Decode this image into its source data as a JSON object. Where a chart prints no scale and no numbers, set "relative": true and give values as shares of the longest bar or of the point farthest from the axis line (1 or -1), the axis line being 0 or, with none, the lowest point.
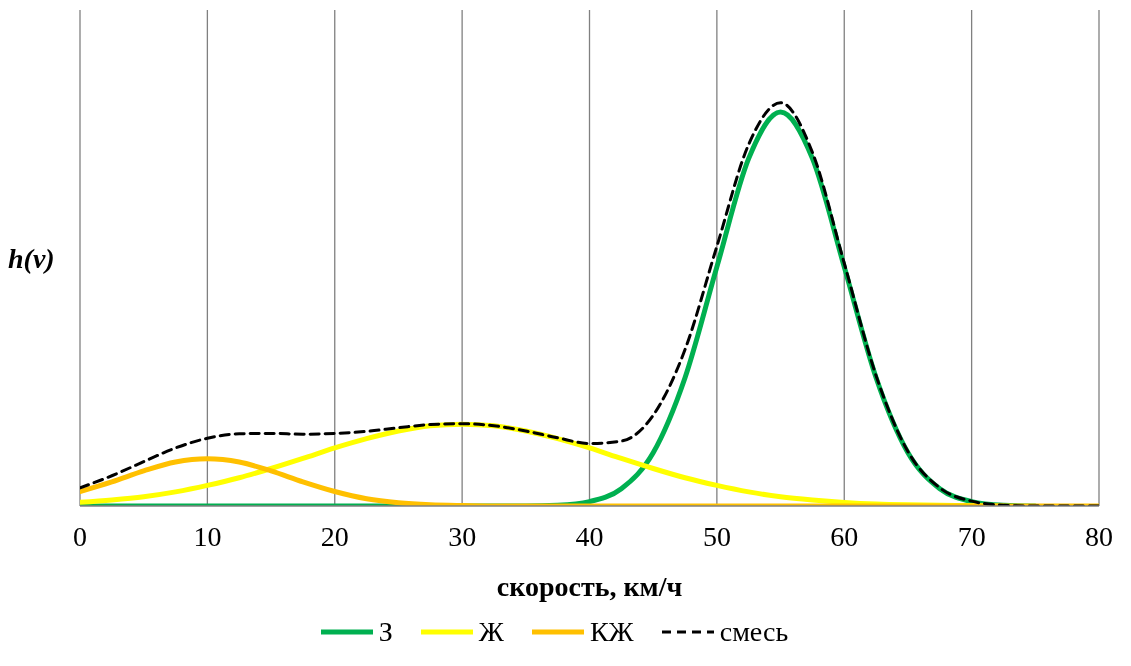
{
  "chart_data": {
    "type": "line",
    "relative": true,
    "xlabel": "скорость, км/ч",
    "ylabel": "h(v)",
    "x": [
      0,
      2.5,
      5,
      7.5,
      10,
      12.5,
      15,
      17.5,
      20,
      22.5,
      25,
      27.5,
      30,
      32.5,
      35,
      37.5,
      40,
      42.5,
      45,
      47.5,
      50,
      52.5,
      55,
      57.5,
      60,
      62.5,
      65,
      67.5,
      70,
      72.5,
      75,
      77.5,
      80
    ],
    "xlim": [
      0,
      80
    ],
    "xticks": [
      0,
      10,
      20,
      30,
      40,
      50,
      60,
      70,
      80
    ],
    "grid": true,
    "legend": "bottom",
    "marker": "none",
    "series": [
      {
        "name": "З",
        "color": "#00b050",
        "line_style": "solid",
        "values": [
          0,
          0,
          0,
          0,
          0,
          0,
          0,
          0,
          0,
          0,
          0,
          0,
          0,
          0,
          0,
          0.002,
          0.011,
          0.043,
          0.132,
          0.318,
          0.593,
          0.862,
          0.977,
          0.862,
          0.593,
          0.318,
          0.132,
          0.043,
          0.011,
          0.002,
          0,
          null,
          null
        ]
      },
      {
        "name": "Ж",
        "color": "#ffff00",
        "line_style": "solid",
        "values": [
          0.009,
          0.015,
          0.023,
          0.035,
          0.051,
          0.07,
          0.093,
          0.118,
          0.144,
          0.167,
          0.186,
          0.199,
          0.203,
          0.199,
          0.186,
          0.167,
          0.144,
          0.118,
          0.093,
          0.07,
          0.051,
          0.035,
          0.023,
          0.015,
          0.009,
          0.005,
          0.003,
          0.002,
          0.001,
          0,
          null,
          null,
          null
        ]
      },
      {
        "name": "КЖ",
        "color": "#ffc000",
        "line_style": "solid",
        "values": [
          0.036,
          0.06,
          0.087,
          0.109,
          0.117,
          0.109,
          0.087,
          0.06,
          0.036,
          0.018,
          0.008,
          0.003,
          0.001,
          0,
          0,
          0,
          0,
          0,
          0,
          0,
          0,
          0,
          0,
          0,
          0,
          0,
          0,
          0,
          0,
          0,
          0,
          0,
          0
        ]
      },
      {
        "name": "смесь",
        "color": "#000000",
        "line_style": "dashed",
        "values": [
          0.045,
          0.075,
          0.11,
          0.144,
          0.168,
          0.179,
          0.18,
          0.178,
          0.18,
          0.185,
          0.194,
          0.202,
          0.204,
          0.199,
          0.186,
          0.169,
          0.155,
          0.161,
          0.225,
          0.388,
          0.644,
          0.897,
          1.0,
          0.877,
          0.602,
          0.323,
          0.135,
          0.045,
          0.012,
          0.002,
          0,
          0,
          0
        ]
      }
    ]
  }
}
